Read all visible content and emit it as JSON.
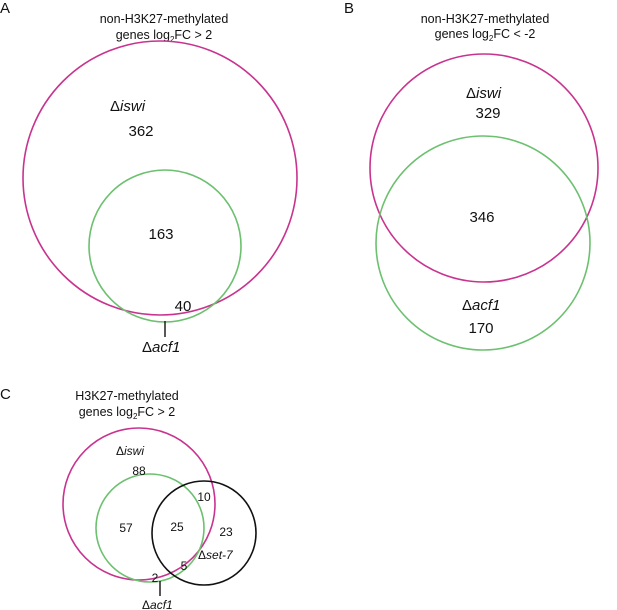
{
  "colors": {
    "iswi": "#c8338f",
    "acf1": "#6cc06f",
    "set7": "#111111"
  },
  "panel_a": {
    "letter": "A",
    "title_line1": "non-H3K27-methylated",
    "title_line2_prefix": "genes log",
    "title_line2_sub": "2",
    "title_line2_suffix": "FC > 2",
    "label_iswi_delta": "Δ",
    "label_iswi_name": "iswi",
    "label_acf1_delta": "Δ",
    "label_acf1_name": "acf1",
    "count_iswi_only": "362",
    "count_overlap": "163",
    "count_acf1_only": "40"
  },
  "panel_b": {
    "letter": "B",
    "title_line1": "non-H3K27-methylated",
    "title_line2_prefix": "genes log",
    "title_line2_sub": "2",
    "title_line2_suffix": "FC < -2",
    "label_iswi_delta": "Δ",
    "label_iswi_name": "iswi",
    "label_acf1_delta": "Δ",
    "label_acf1_name": "acf1",
    "count_iswi_only": "329",
    "count_overlap": "346",
    "count_acf1_only": "170"
  },
  "panel_c": {
    "letter": "C",
    "title_line1": "H3K27-methylated",
    "title_line2_prefix": "genes log",
    "title_line2_sub": "2",
    "title_line2_suffix": "FC > 2",
    "label_iswi_delta": "Δ",
    "label_iswi_name": "iswi",
    "label_acf1_delta": "Δ",
    "label_acf1_name": "acf1",
    "label_set7_delta": "Δ",
    "label_set7_name": "set-7",
    "count_iswi_only": "88",
    "count_iswi_acf1": "57",
    "count_all_three": "25",
    "count_iswi_set7": "10",
    "count_set7_only": "23",
    "count_acf1_set7": "5",
    "count_acf1_only": "2"
  }
}
